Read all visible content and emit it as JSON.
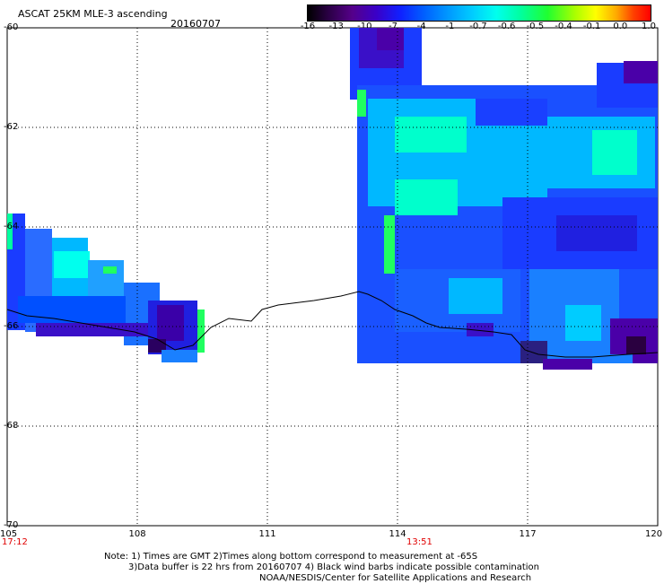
{
  "header": {
    "title": "ASCAT 25KM MLE-3 ascending",
    "date": "20160707"
  },
  "colorbar": {
    "labels": [
      "-16",
      "-13",
      "-10",
      "-7",
      "-4",
      "-1",
      "-0.7",
      "-0.6",
      "-0.5",
      "-0.4",
      "-0.1",
      "0.0",
      "1.0"
    ]
  },
  "axes": {
    "lat_labels": [
      "-60",
      "-62",
      "-64",
      "-66",
      "-68",
      "-70"
    ],
    "lon_labels": [
      "105",
      "108",
      "111",
      "114",
      "117",
      "120"
    ],
    "lat_range": [
      -70,
      -60
    ],
    "lon_range": [
      105,
      120
    ]
  },
  "times": {
    "left": "17:12",
    "mid": "13:51"
  },
  "notes": {
    "line1": "Note: 1) Times are GMT 2)Times along bottom correspond to measurement at -65S",
    "line2": "3)Data buffer is 22 hrs from 20160707 4) Black wind barbs indicate possible contamination",
    "line3": "NOAA/NESDIS/Center for Satellite Applications and Research"
  },
  "colors": {
    "purple": "#4a00a8",
    "blue": "#1a3cff",
    "cyan": "#00d8ff",
    "green": "#20ff60",
    "coast": "#000000"
  }
}
